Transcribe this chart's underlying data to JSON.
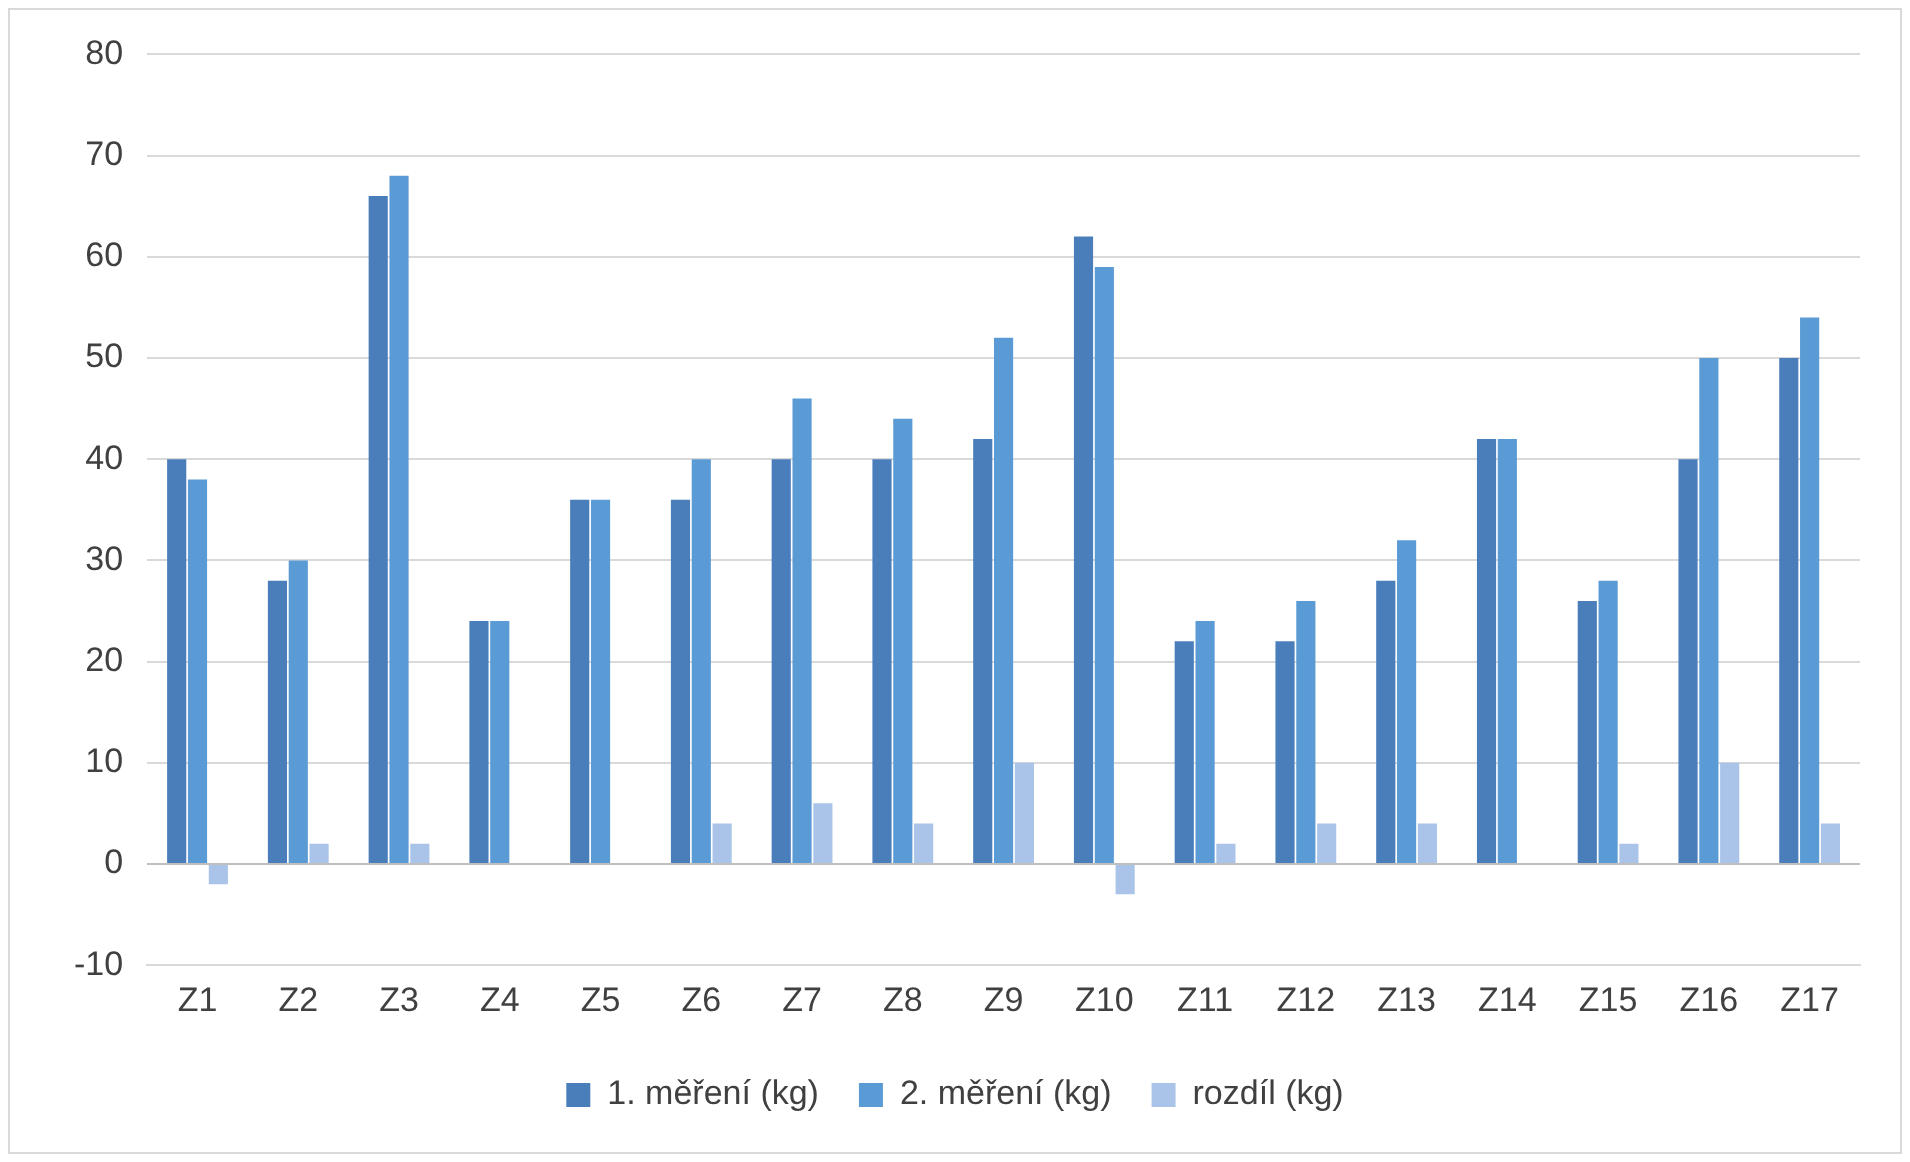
{
  "chart_data": {
    "type": "bar",
    "categories": [
      "Z1",
      "Z2",
      "Z3",
      "Z4",
      "Z5",
      "Z6",
      "Z7",
      "Z8",
      "Z9",
      "Z10",
      "Z11",
      "Z12",
      "Z13",
      "Z14",
      "Z15",
      "Z16",
      "Z17"
    ],
    "series": [
      {
        "name": "1. měření (kg)",
        "color": "#4a7ebb",
        "values": [
          40,
          28,
          66,
          24,
          36,
          36,
          40,
          40,
          42,
          62,
          22,
          22,
          28,
          42,
          26,
          40,
          50
        ]
      },
      {
        "name": "2. měření (kg)",
        "color": "#5b9bd5",
        "values": [
          38,
          30,
          68,
          24,
          36,
          40,
          46,
          44,
          52,
          59,
          24,
          26,
          32,
          42,
          28,
          50,
          54
        ]
      },
      {
        "name": "rozdíl (kg)",
        "color": "#a9c4e8",
        "values": [
          -2,
          2,
          2,
          0,
          0,
          4,
          6,
          4,
          10,
          -3,
          2,
          4,
          4,
          0,
          2,
          10,
          4
        ]
      }
    ],
    "ylim": [
      -10,
      80
    ],
    "yticks": [
      -10,
      0,
      10,
      20,
      30,
      40,
      50,
      60,
      70,
      80
    ],
    "grid": "y",
    "legend": "bottom"
  }
}
